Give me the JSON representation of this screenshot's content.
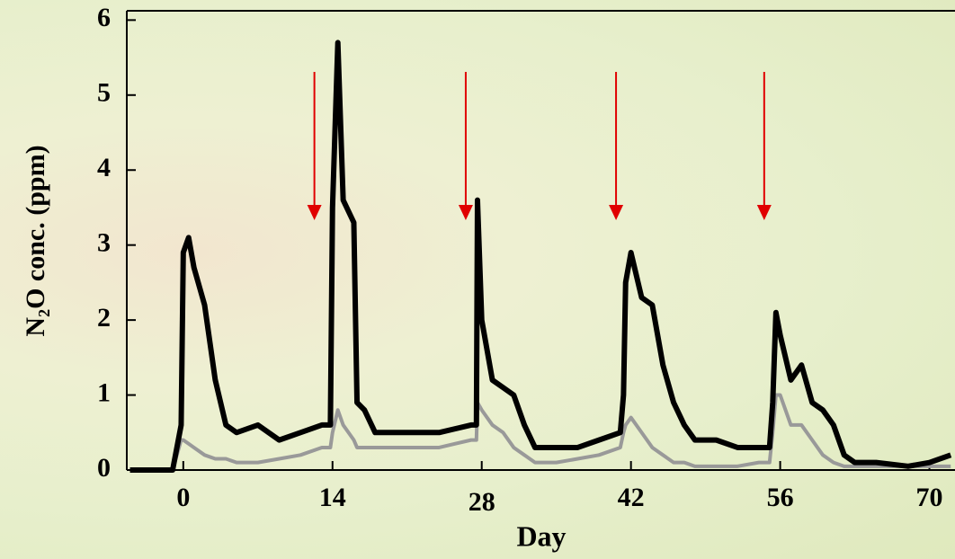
{
  "chart_data": {
    "type": "line",
    "x_label": "Day",
    "y_label": "N₂O conc. (ppm)",
    "x": [
      -5,
      -1,
      -0.2,
      0,
      0.5,
      1,
      2,
      3,
      4,
      5,
      7,
      9,
      11,
      13,
      13.8,
      14,
      14.5,
      15,
      16,
      16.3,
      17,
      18,
      19,
      21,
      24,
      27,
      27.5,
      27.6,
      28,
      29,
      30,
      31,
      32,
      33,
      35,
      37,
      39,
      41,
      41.3,
      41.5,
      42,
      43,
      44,
      45,
      46,
      47,
      48,
      50,
      52,
      54,
      55,
      55.3,
      55.6,
      56,
      57,
      58,
      59,
      60,
      61,
      62,
      63,
      65,
      68,
      70,
      72
    ],
    "series": [
      {
        "color": "#000000",
        "values": [
          0,
          0,
          0.6,
          2.9,
          3.1,
          2.7,
          2.2,
          1.2,
          0.6,
          0.5,
          0.6,
          0.4,
          0.5,
          0.6,
          0.6,
          3.5,
          5.7,
          3.6,
          3.3,
          0.9,
          0.8,
          0.5,
          0.5,
          0.5,
          0.5,
          0.6,
          0.6,
          3.6,
          2.0,
          1.2,
          1.1,
          1.0,
          0.6,
          0.3,
          0.3,
          0.3,
          0.4,
          0.5,
          1.0,
          2.5,
          2.9,
          2.3,
          2.2,
          1.4,
          0.9,
          0.6,
          0.4,
          0.4,
          0.3,
          0.3,
          0.3,
          0.9,
          2.1,
          1.8,
          1.2,
          1.4,
          0.9,
          0.8,
          0.6,
          0.2,
          0.1,
          0.1,
          0.05,
          0.1,
          0.2
        ]
      },
      {
        "color": "#999999",
        "values": [
          0,
          0,
          0.4,
          0.4,
          0.35,
          0.3,
          0.2,
          0.15,
          0.15,
          0.1,
          0.1,
          0.15,
          0.2,
          0.3,
          0.3,
          0.5,
          0.8,
          0.6,
          0.4,
          0.3,
          0.3,
          0.3,
          0.3,
          0.3,
          0.3,
          0.4,
          0.4,
          0.9,
          0.8,
          0.6,
          0.5,
          0.3,
          0.2,
          0.1,
          0.1,
          0.15,
          0.2,
          0.3,
          0.5,
          0.6,
          0.7,
          0.5,
          0.3,
          0.2,
          0.1,
          0.1,
          0.05,
          0.05,
          0.05,
          0.1,
          0.1,
          0.5,
          1.0,
          1.0,
          0.6,
          0.6,
          0.4,
          0.2,
          0.1,
          0.05,
          0.05,
          0.05,
          0.05,
          0.05,
          0.05
        ]
      }
    ],
    "arrows_x": [
      12.3,
      26.5,
      40.6,
      54.5
    ],
    "arrow_color": "#e00000",
    "xlim": [
      -5.3,
      72.4
    ],
    "ylim": [
      0,
      6.1
    ],
    "xticks": [
      0,
      14,
      28,
      42,
      56,
      70
    ],
    "yticks": [
      0,
      1,
      2,
      3,
      4,
      5,
      6
    ]
  }
}
